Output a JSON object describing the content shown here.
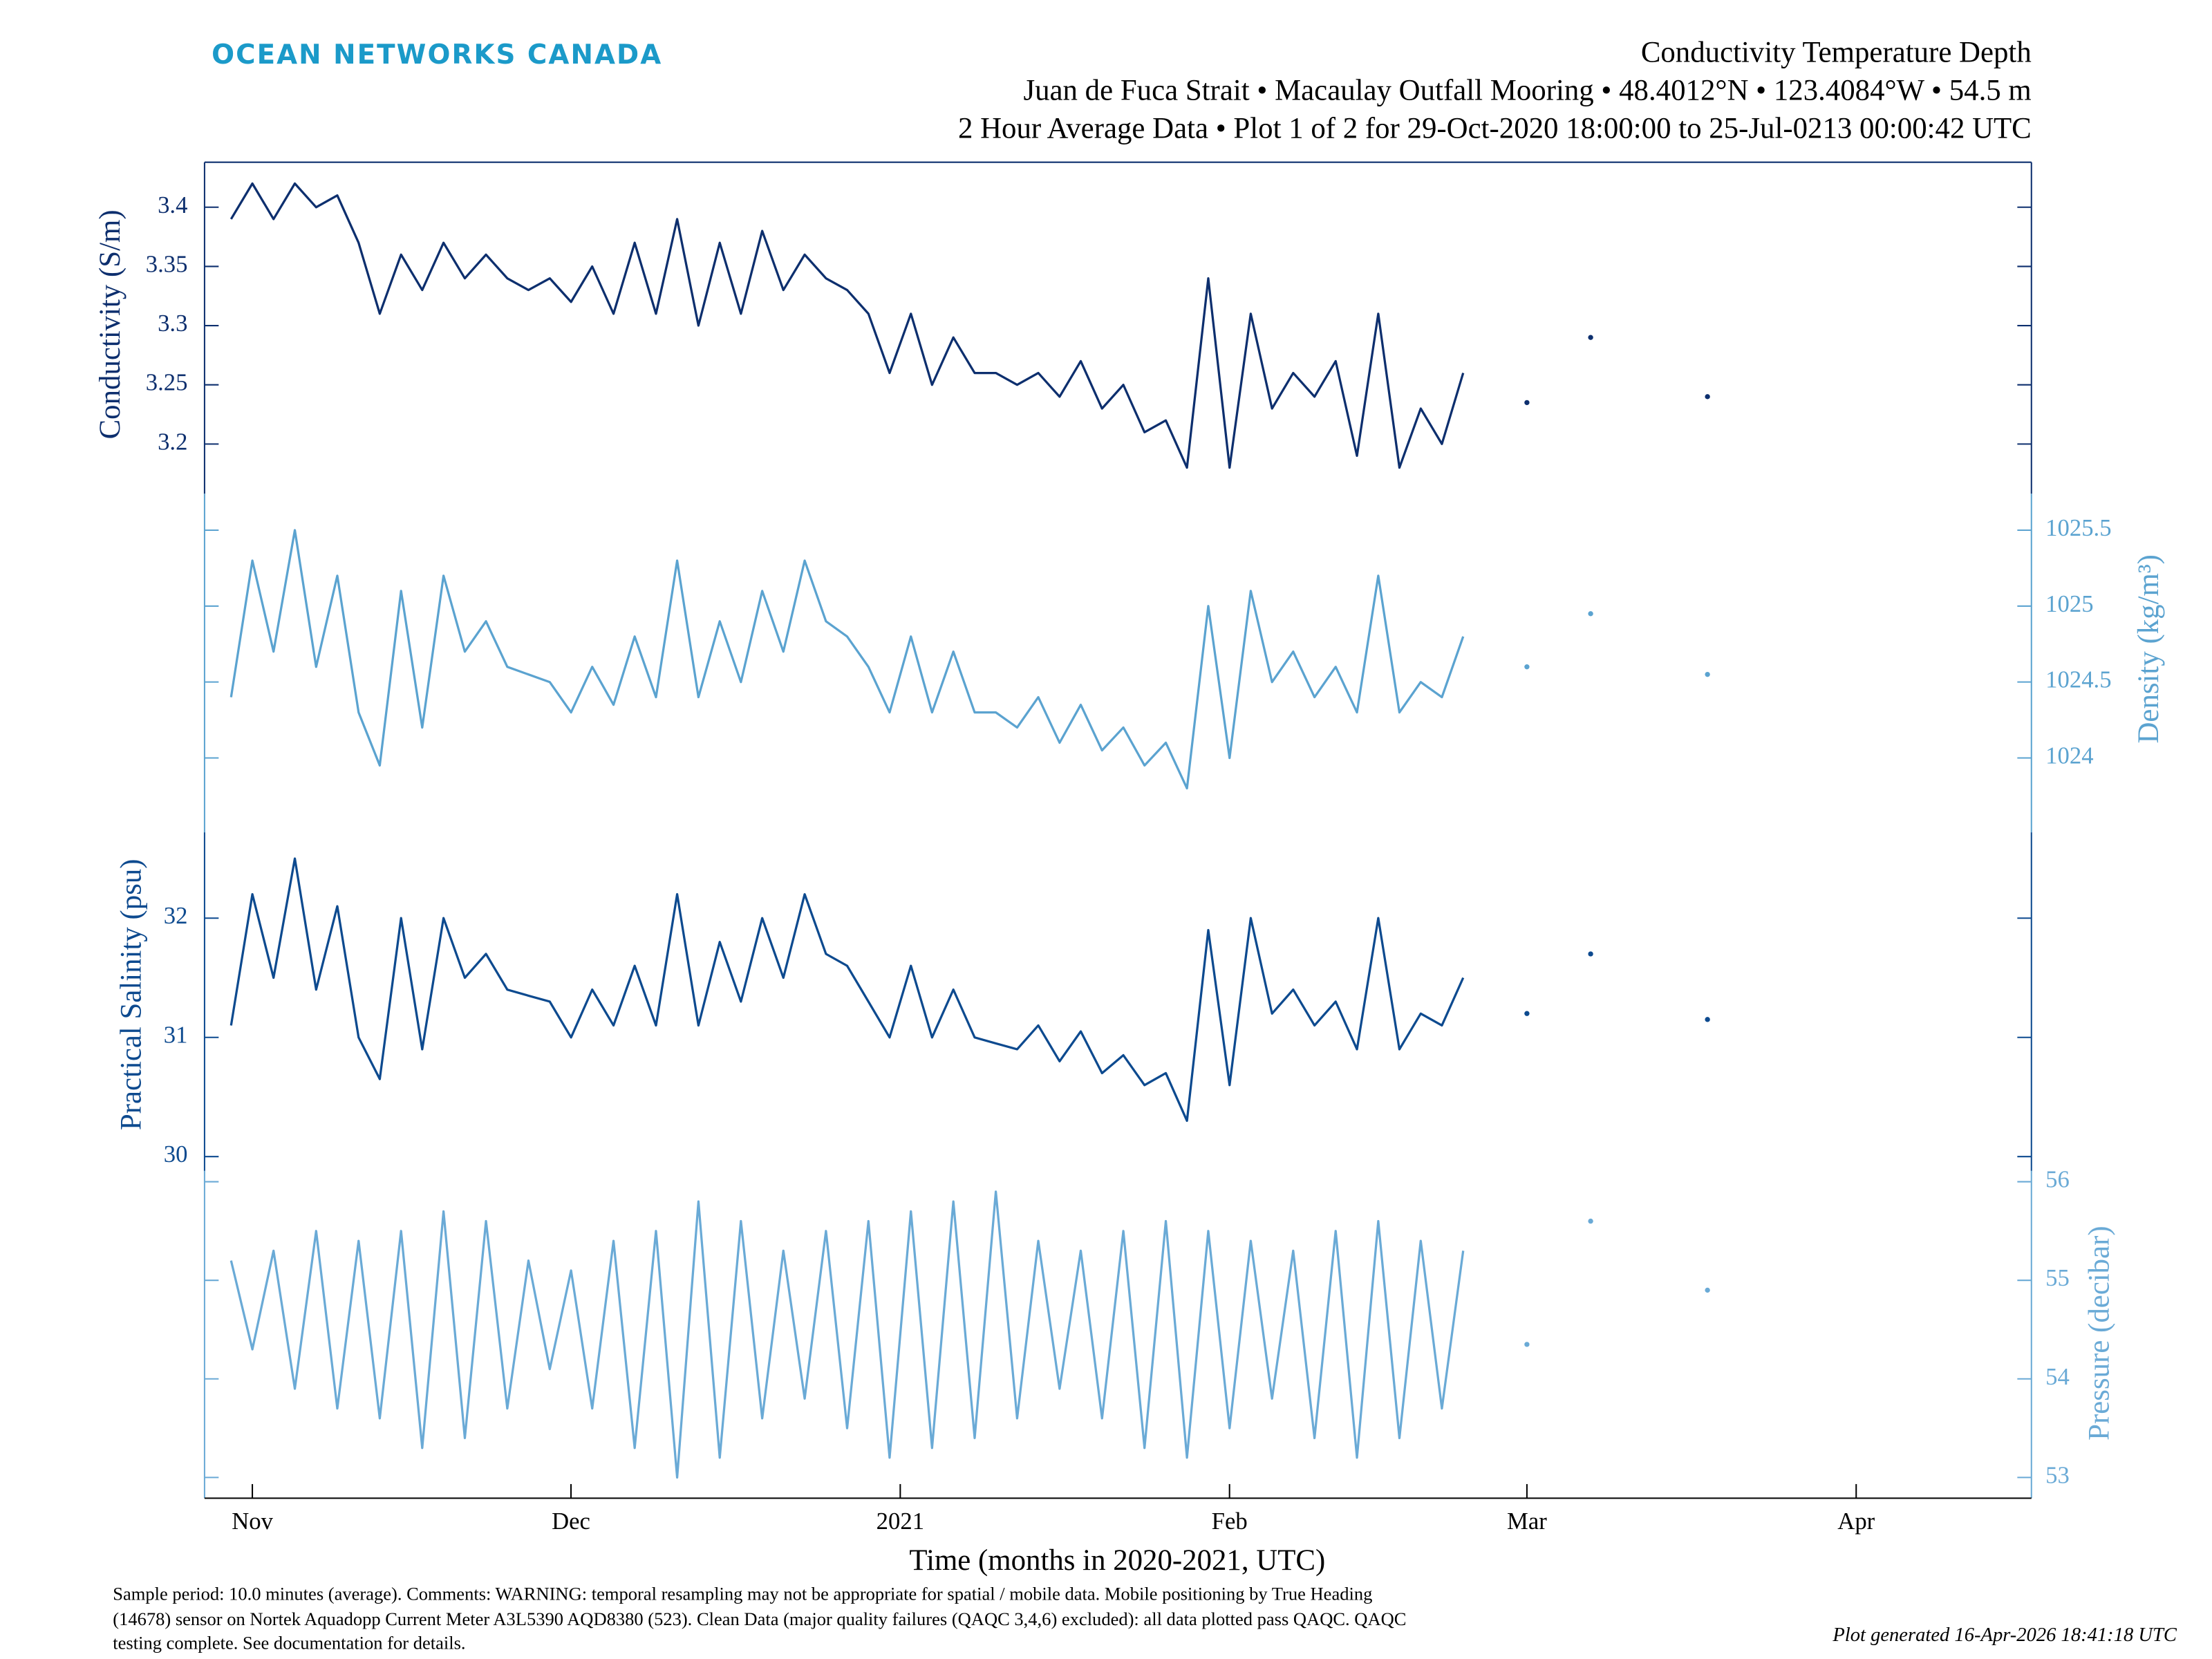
{
  "header": {
    "logo": "OCEAN NETWORKS CANADA",
    "title": "Conductivity Temperature Depth",
    "subtitle": [
      "Juan de Fuca Strait • Macaulay Outfall Mooring • 48.4012°N • 123.4084°W • 54.5 m",
      "2 Hour Average Data • Plot 1 of 2 for 29-Oct-2020 18:00:00 to 25-Jul-0213 00:00:42 UTC"
    ]
  },
  "footer": {
    "notes": [
      "Sample period: 10.0 minutes (average). Comments: WARNING: temporal resampling may not be appropriate for spatial / mobile data. Mobile positioning by True Heading",
      "(14678) sensor on Nortek Aquadopp Current Meter A3L5390 AQD8380 (523). Clean Data (major quality failures (QAQC 3,4,6) excluded): all data plotted pass QAQC. QAQC",
      "testing complete. See documentation for details."
    ],
    "generated": "Plot generated 16-Apr-2026 18:41:18 UTC"
  },
  "chart_data": [
    {
      "type": "line",
      "ylabel": "Conductivity (S/m)",
      "axis_side": "left",
      "color": "#0d2f6e",
      "xlim": [
        -4.5,
        167.5
      ],
      "ylim": [
        3.158,
        3.438
      ],
      "yticks": [
        3.2,
        3.25,
        3.3,
        3.35,
        3.4
      ],
      "x": [
        -2,
        0,
        2,
        4,
        6,
        8,
        10,
        12,
        14,
        16,
        18,
        20,
        22,
        24,
        26,
        28,
        30,
        32,
        34,
        36,
        38,
        40,
        42,
        44,
        46,
        48,
        50,
        52,
        54,
        56,
        58,
        60,
        62,
        64,
        66,
        68,
        70,
        72,
        74,
        76,
        78,
        80,
        82,
        84,
        86,
        88,
        90,
        92,
        94,
        96,
        98,
        100,
        102,
        104,
        106,
        108,
        110,
        112,
        114,
        117,
        120,
        123,
        126,
        131,
        137
      ],
      "values": [
        3.39,
        3.42,
        3.39,
        3.42,
        3.4,
        3.41,
        3.37,
        3.31,
        3.36,
        3.33,
        3.37,
        3.34,
        3.36,
        3.34,
        3.33,
        3.34,
        3.32,
        3.35,
        3.31,
        3.37,
        3.31,
        3.39,
        3.3,
        3.37,
        3.31,
        3.38,
        3.33,
        3.36,
        3.34,
        3.33,
        3.31,
        3.26,
        3.31,
        3.25,
        3.29,
        3.26,
        3.26,
        3.25,
        3.26,
        3.24,
        3.27,
        3.23,
        3.25,
        3.21,
        3.22,
        3.18,
        3.34,
        3.18,
        3.31,
        3.23,
        3.26,
        3.24,
        3.27,
        3.19,
        3.31,
        3.18,
        3.23,
        3.2,
        3.26,
        null,
        3.235,
        null,
        3.29,
        null,
        3.24
      ]
    },
    {
      "type": "line",
      "ylabel": "Density (kg/m³)",
      "axis_side": "right",
      "color": "#5ba3d0",
      "xlim": [
        -4.5,
        167.5
      ],
      "ylim": [
        1023.51,
        1025.74
      ],
      "yticks": [
        1024,
        1024.5,
        1025,
        1025.5
      ],
      "x": [
        -2,
        0,
        2,
        4,
        6,
        8,
        10,
        12,
        14,
        16,
        18,
        20,
        22,
        24,
        26,
        28,
        30,
        32,
        34,
        36,
        38,
        40,
        42,
        44,
        46,
        48,
        50,
        52,
        54,
        56,
        58,
        60,
        62,
        64,
        66,
        68,
        70,
        72,
        74,
        76,
        78,
        80,
        82,
        84,
        86,
        88,
        90,
        92,
        94,
        96,
        98,
        100,
        102,
        104,
        106,
        108,
        110,
        112,
        114,
        117,
        120,
        123,
        126,
        131,
        137
      ],
      "values": [
        1024.4,
        1025.3,
        1024.7,
        1025.5,
        1024.6,
        1025.2,
        1024.3,
        1023.95,
        1025.1,
        1024.2,
        1025.2,
        1024.7,
        1024.9,
        1024.6,
        1024.55,
        1024.5,
        1024.3,
        1024.6,
        1024.35,
        1024.8,
        1024.4,
        1025.3,
        1024.4,
        1024.9,
        1024.5,
        1025.1,
        1024.7,
        1025.3,
        1024.9,
        1024.8,
        1024.6,
        1024.3,
        1024.8,
        1024.3,
        1024.7,
        1024.3,
        1024.3,
        1024.2,
        1024.4,
        1024.1,
        1024.35,
        1024.05,
        1024.2,
        1023.95,
        1024.1,
        1023.8,
        1025.0,
        1024.0,
        1025.1,
        1024.5,
        1024.7,
        1024.4,
        1024.6,
        1024.3,
        1025.2,
        1024.3,
        1024.5,
        1024.4,
        1024.8,
        null,
        1024.6,
        null,
        1024.95,
        null,
        1024.55
      ]
    },
    {
      "type": "line",
      "ylabel": "Practical Salinity (psu)",
      "axis_side": "left",
      "color": "#0d4a8f",
      "xlim": [
        -4.5,
        167.5
      ],
      "ylim": [
        29.88,
        32.72
      ],
      "yticks": [
        30,
        31,
        32
      ],
      "x": [
        -2,
        0,
        2,
        4,
        6,
        8,
        10,
        12,
        14,
        16,
        18,
        20,
        22,
        24,
        26,
        28,
        30,
        32,
        34,
        36,
        38,
        40,
        42,
        44,
        46,
        48,
        50,
        52,
        54,
        56,
        58,
        60,
        62,
        64,
        66,
        68,
        70,
        72,
        74,
        76,
        78,
        80,
        82,
        84,
        86,
        88,
        90,
        92,
        94,
        96,
        98,
        100,
        102,
        104,
        106,
        108,
        110,
        112,
        114,
        117,
        120,
        123,
        126,
        131,
        137
      ],
      "values": [
        31.1,
        32.2,
        31.5,
        32.5,
        31.4,
        32.1,
        31.0,
        30.65,
        32.0,
        30.9,
        32.0,
        31.5,
        31.7,
        31.4,
        31.35,
        31.3,
        31.0,
        31.4,
        31.1,
        31.6,
        31.1,
        32.2,
        31.1,
        31.8,
        31.3,
        32.0,
        31.5,
        32.2,
        31.7,
        31.6,
        31.3,
        31.0,
        31.6,
        31.0,
        31.4,
        31.0,
        30.95,
        30.9,
        31.1,
        30.8,
        31.05,
        30.7,
        30.85,
        30.6,
        30.7,
        30.3,
        31.9,
        30.6,
        32.0,
        31.2,
        31.4,
        31.1,
        31.3,
        30.9,
        32.0,
        30.9,
        31.2,
        31.1,
        31.5,
        null,
        31.2,
        null,
        31.7,
        null,
        31.15
      ]
    },
    {
      "type": "line",
      "ylabel": "Pressure (decibar)",
      "axis_side": "right",
      "color": "#6aaad6",
      "xlabel": "Time (months in 2020-2021, UTC)",
      "xlim": [
        -4.5,
        167.5
      ],
      "ylim": [
        52.79,
        56.11
      ],
      "yticks": [
        53,
        54,
        55,
        56
      ],
      "xticks": [
        {
          "value": 0,
          "label": "Nov"
        },
        {
          "value": 30,
          "label": "Dec"
        },
        {
          "value": 61,
          "label": "2021"
        },
        {
          "value": 92,
          "label": "Feb"
        },
        {
          "value": 120,
          "label": "Mar"
        },
        {
          "value": 151,
          "label": "Apr"
        }
      ],
      "x": [
        -2,
        0,
        2,
        4,
        6,
        8,
        10,
        12,
        14,
        16,
        18,
        20,
        22,
        24,
        26,
        28,
        30,
        32,
        34,
        36,
        38,
        40,
        42,
        44,
        46,
        48,
        50,
        52,
        54,
        56,
        58,
        60,
        62,
        64,
        66,
        68,
        70,
        72,
        74,
        76,
        78,
        80,
        82,
        84,
        86,
        88,
        90,
        92,
        94,
        96,
        98,
        100,
        102,
        104,
        106,
        108,
        110,
        112,
        114,
        117,
        120,
        123,
        126,
        131,
        137
      ],
      "values": [
        55.2,
        54.3,
        55.3,
        53.9,
        55.5,
        53.7,
        55.4,
        53.6,
        55.5,
        53.3,
        55.7,
        53.4,
        55.6,
        53.7,
        55.2,
        54.1,
        55.1,
        53.7,
        55.4,
        53.3,
        55.5,
        53.0,
        55.8,
        53.2,
        55.6,
        53.6,
        55.3,
        53.8,
        55.5,
        53.5,
        55.6,
        53.2,
        55.7,
        53.3,
        55.8,
        53.4,
        55.9,
        53.6,
        55.4,
        53.9,
        55.3,
        53.6,
        55.5,
        53.3,
        55.6,
        53.2,
        55.5,
        53.5,
        55.4,
        53.8,
        55.3,
        53.4,
        55.5,
        53.2,
        55.6,
        53.4,
        55.4,
        53.7,
        55.3,
        null,
        54.35,
        null,
        55.6,
        null,
        54.9
      ]
    }
  ]
}
